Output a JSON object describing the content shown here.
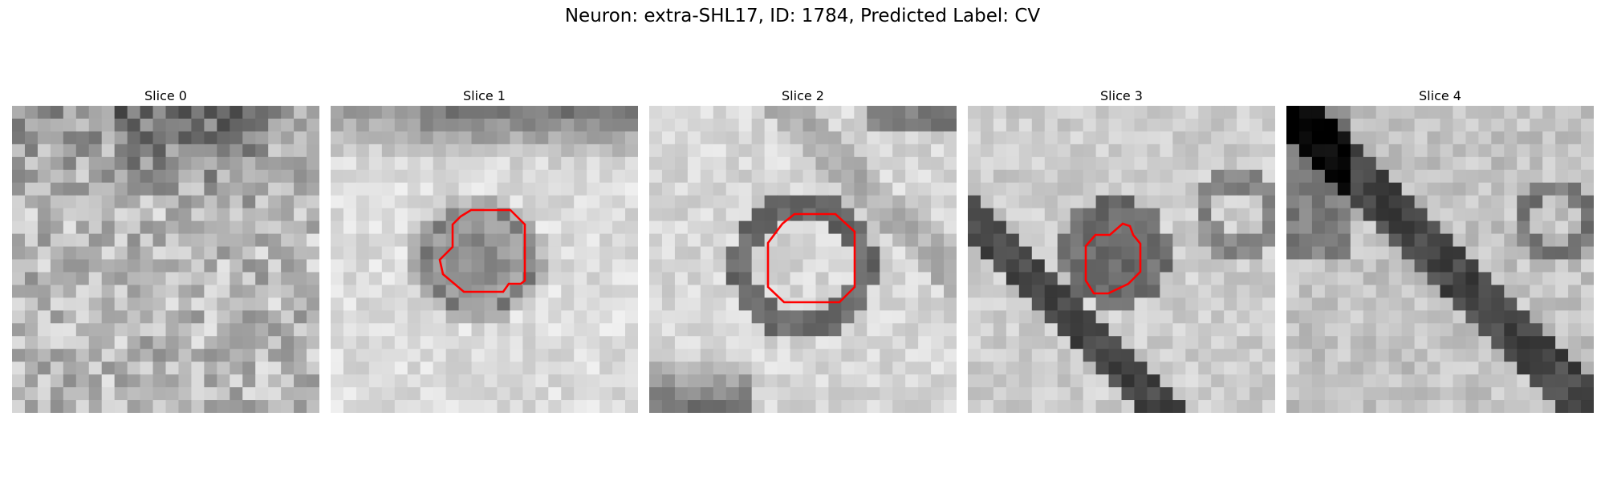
{
  "title": "Neuron: extra-SHL17, ID: 1784, Predicted Label: CV",
  "contour_color": "#ff0000",
  "panels": [
    {
      "title": "Slice 0",
      "has_contour": false,
      "pattern": "noise"
    },
    {
      "title": "Slice 1",
      "has_contour": true,
      "pattern": "vesicle-left"
    },
    {
      "title": "Slice 2",
      "has_contour": true,
      "pattern": "ring-center"
    },
    {
      "title": "Slice 3",
      "has_contour": true,
      "pattern": "blob-diagonal"
    },
    {
      "title": "Slice 4",
      "has_contour": false,
      "pattern": "diagonal-band"
    }
  ]
}
